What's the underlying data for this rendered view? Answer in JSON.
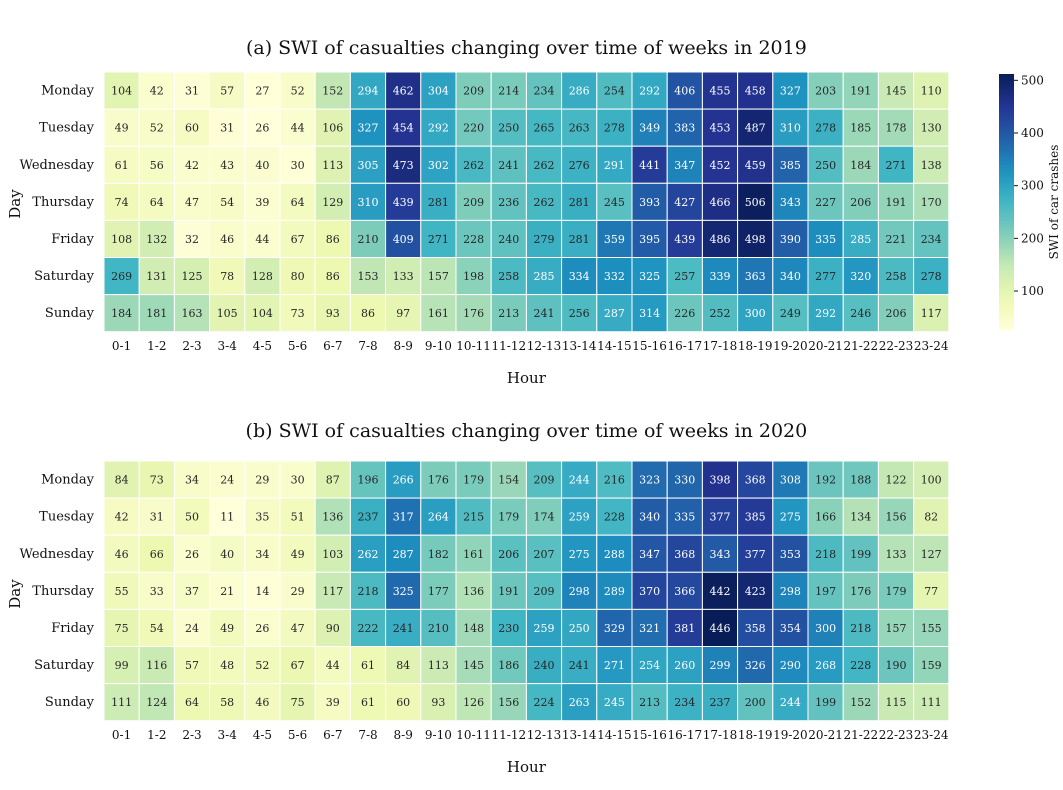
{
  "chart_data": [
    {
      "type": "heatmap",
      "title": "(a) SWI of casualties changing over time of weeks in 2019",
      "xlabel": "Hour",
      "ylabel": "Day",
      "x": [
        "0-1",
        "1-2",
        "2-3",
        "3-4",
        "4-5",
        "5-6",
        "6-7",
        "7-8",
        "8-9",
        "9-10",
        "10-11",
        "11-12",
        "12-13",
        "13-14",
        "14-15",
        "15-16",
        "16-17",
        "17-18",
        "18-19",
        "19-20",
        "20-21",
        "21-22",
        "22-23",
        "23-24"
      ],
      "y": [
        "Monday",
        "Tuesday",
        "Wednesday",
        "Thursday",
        "Friday",
        "Saturday",
        "Sunday"
      ],
      "values": [
        [
          104,
          42,
          31,
          57,
          27,
          52,
          152,
          294,
          462,
          304,
          209,
          214,
          234,
          286,
          254,
          292,
          406,
          455,
          458,
          327,
          203,
          191,
          145,
          110
        ],
        [
          49,
          52,
          60,
          31,
          26,
          44,
          106,
          327,
          454,
          292,
          220,
          250,
          265,
          263,
          278,
          349,
          383,
          453,
          487,
          310,
          278,
          185,
          178,
          130
        ],
        [
          61,
          56,
          42,
          43,
          40,
          30,
          113,
          305,
          473,
          302,
          262,
          241,
          262,
          276,
          291,
          441,
          347,
          452,
          459,
          385,
          250,
          184,
          271,
          138
        ],
        [
          74,
          64,
          47,
          54,
          39,
          64,
          129,
          310,
          439,
          281,
          209,
          236,
          262,
          281,
          245,
          393,
          427,
          466,
          506,
          343,
          227,
          206,
          191,
          170
        ],
        [
          108,
          132,
          32,
          46,
          44,
          67,
          86,
          210,
          409,
          271,
          228,
          240,
          279,
          281,
          359,
          395,
          439,
          486,
          498,
          390,
          335,
          285,
          221,
          234
        ],
        [
          269,
          131,
          125,
          78,
          128,
          80,
          86,
          153,
          133,
          157,
          198,
          258,
          285,
          334,
          332,
          325,
          257,
          339,
          363,
          340,
          277,
          320,
          258,
          278
        ],
        [
          184,
          181,
          163,
          105,
          104,
          73,
          93,
          86,
          97,
          161,
          176,
          213,
          241,
          256,
          287,
          314,
          226,
          252,
          300,
          249,
          292,
          246,
          206,
          117
        ]
      ],
      "colorbar": {
        "label": "SWI of car crashes",
        "ticks": [
          100,
          200,
          300,
          400,
          500
        ],
        "range": [
          26,
          512
        ],
        "colormap": "YlGnBu"
      }
    },
    {
      "type": "heatmap",
      "title": "(b) SWI of casualties changing over time of weeks in 2020",
      "xlabel": "Hour",
      "ylabel": "Day",
      "x": [
        "0-1",
        "1-2",
        "2-3",
        "3-4",
        "4-5",
        "5-6",
        "6-7",
        "7-8",
        "8-9",
        "9-10",
        "10-11",
        "11-12",
        "12-13",
        "13-14",
        "14-15",
        "15-16",
        "16-17",
        "17-18",
        "18-19",
        "19-20",
        "20-21",
        "21-22",
        "22-23",
        "23-24"
      ],
      "y": [
        "Monday",
        "Tuesday",
        "Wednesday",
        "Thursday",
        "Friday",
        "Saturday",
        "Sunday"
      ],
      "values": [
        [
          84,
          73,
          34,
          24,
          29,
          30,
          87,
          196,
          266,
          176,
          179,
          154,
          209,
          244,
          216,
          323,
          330,
          398,
          368,
          308,
          192,
          188,
          122,
          100
        ],
        [
          42,
          31,
          50,
          11,
          35,
          51,
          136,
          237,
          317,
          264,
          215,
          179,
          174,
          259,
          228,
          340,
          335,
          377,
          385,
          275,
          166,
          134,
          156,
          82
        ],
        [
          46,
          66,
          26,
          40,
          34,
          49,
          103,
          262,
          287,
          182,
          161,
          206,
          207,
          275,
          288,
          347,
          368,
          343,
          377,
          353,
          218,
          199,
          133,
          127
        ],
        [
          55,
          33,
          37,
          21,
          14,
          29,
          117,
          218,
          325,
          177,
          136,
          191,
          209,
          298,
          289,
          370,
          366,
          442,
          423,
          298,
          197,
          176,
          179,
          77
        ],
        [
          75,
          54,
          24,
          49,
          26,
          47,
          90,
          222,
          241,
          210,
          148,
          230,
          259,
          250,
          329,
          321,
          381,
          446,
          358,
          354,
          300,
          218,
          157,
          155
        ],
        [
          99,
          116,
          57,
          48,
          52,
          67,
          44,
          61,
          84,
          113,
          145,
          186,
          240,
          241,
          271,
          254,
          260,
          299,
          326,
          290,
          268,
          228,
          190,
          159
        ],
        [
          111,
          124,
          64,
          58,
          46,
          75,
          39,
          61,
          60,
          93,
          126,
          156,
          224,
          263,
          245,
          213,
          234,
          237,
          200,
          244,
          199,
          152,
          115,
          111
        ]
      ],
      "colorbar": {
        "range": [
          11,
          446
        ],
        "colormap": "YlGnBu"
      }
    }
  ]
}
